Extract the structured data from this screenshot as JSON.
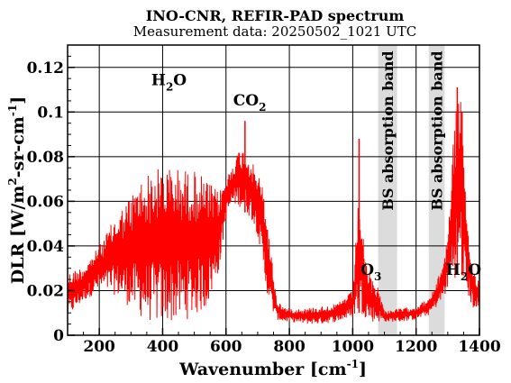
{
  "chart_data": {
    "type": "line",
    "title": "INO-CNR, REFIR-PAD spectrum",
    "subtitle": "Measurement data: 20250502_1021 UTC",
    "xlabel": {
      "base": "Wavenumber [cm",
      "sup": "-1",
      "tail": "]"
    },
    "ylabel": {
      "p1": "DLR [W/m",
      "sup1": "2",
      "p2": "-sr-cm",
      "sup2": "-1",
      "p3": "]"
    },
    "xlim": [
      100,
      1400
    ],
    "ylim": [
      0,
      0.13
    ],
    "xticks": [
      200,
      400,
      600,
      800,
      1000,
      1200,
      1400
    ],
    "xtick_labels": [
      "200",
      "400",
      "600",
      "800",
      "1000",
      "1200",
      "1400"
    ],
    "yticks": [
      0,
      0.02,
      0.04,
      0.06,
      0.08,
      0.1,
      0.12
    ],
    "ytick_labels": [
      "0",
      "0.02",
      "0.04",
      "0.06",
      "0.08",
      "0.1",
      "0.12"
    ],
    "grid": true,
    "series": [
      {
        "color": "#ff0000",
        "envelope": {
          "x": [
            100,
            150,
            200,
            250,
            300,
            330,
            360,
            400,
            450,
            500,
            540,
            560,
            580,
            600,
            620,
            640,
            660,
            680,
            700,
            720,
            740,
            760,
            780,
            800,
            850,
            900,
            950,
            1000,
            1020,
            1040,
            1060,
            1080,
            1100,
            1150,
            1200,
            1220,
            1240,
            1260,
            1280,
            1300,
            1320,
            1340,
            1360,
            1380,
            1400
          ],
          "upper": [
            0.028,
            0.031,
            0.04,
            0.053,
            0.063,
            0.07,
            0.073,
            0.076,
            0.075,
            0.074,
            0.07,
            0.066,
            0.065,
            0.07,
            0.077,
            0.083,
            0.084,
            0.078,
            0.073,
            0.065,
            0.04,
            0.016,
            0.013,
            0.012,
            0.012,
            0.013,
            0.014,
            0.02,
            0.065,
            0.033,
            0.025,
            0.022,
            0.011,
            0.012,
            0.013,
            0.015,
            0.016,
            0.022,
            0.03,
            0.045,
            0.096,
            0.112,
            0.05,
            0.03,
            0.025
          ],
          "lower": [
            0.008,
            0.015,
            0.02,
            0.018,
            0.012,
            0.008,
            0.006,
            0.005,
            0.006,
            0.008,
            0.012,
            0.02,
            0.03,
            0.052,
            0.058,
            0.058,
            0.055,
            0.052,
            0.045,
            0.025,
            0.012,
            0.007,
            0.006,
            0.006,
            0.005,
            0.005,
            0.006,
            0.008,
            0.01,
            0.008,
            0.006,
            0.006,
            0.006,
            0.006,
            0.007,
            0.008,
            0.009,
            0.012,
            0.015,
            0.02,
            0.025,
            0.03,
            0.018,
            0.012,
            0.01
          ]
        },
        "spikes": [
          {
            "x": 660,
            "y": 0.096
          },
          {
            "x": 1020,
            "y": 0.088
          },
          {
            "x": 1330,
            "y": 0.111
          },
          {
            "x": 1345,
            "y": 0.1
          }
        ]
      }
    ],
    "bands": [
      {
        "x0": 1080,
        "x1": 1140,
        "label": "BS absorption band"
      },
      {
        "x0": 1240,
        "x1": 1290,
        "label": "BS absorption band"
      }
    ],
    "annotations": [
      {
        "id": "h2o-left",
        "main": "H",
        "sub": "2",
        "tail": "O",
        "x": 420,
        "y": 0.112
      },
      {
        "id": "co2",
        "main": "CO",
        "sub": "2",
        "tail": "",
        "x": 675,
        "y": 0.103
      },
      {
        "id": "o3",
        "main": "O",
        "sub": "3",
        "tail": "",
        "x": 1058,
        "y": 0.027
      },
      {
        "id": "h2o-right",
        "main": "H",
        "sub": "2",
        "tail": "O",
        "x": 1350,
        "y": 0.027
      }
    ]
  }
}
